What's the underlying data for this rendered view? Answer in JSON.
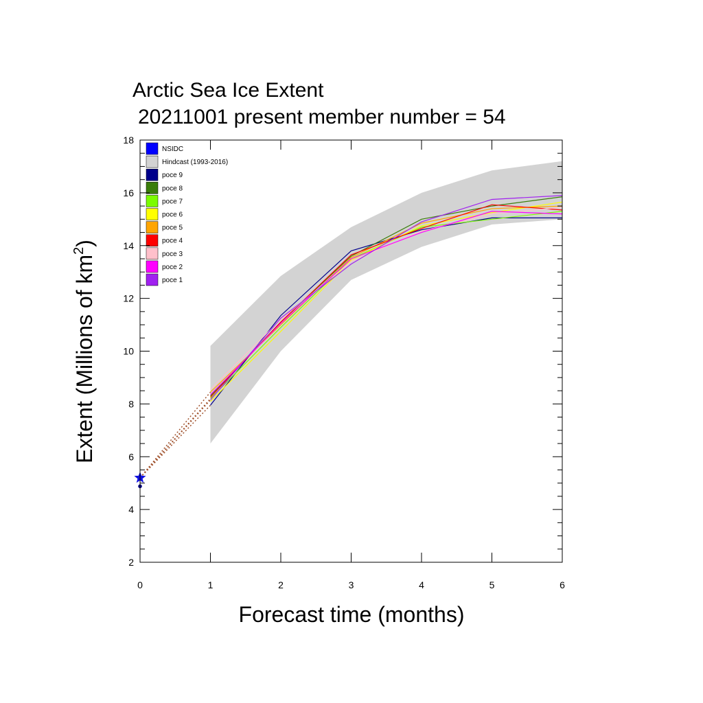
{
  "chart_data": {
    "type": "line",
    "title_line1": "Arctic Sea Ice Extent",
    "title_line2": "20211001 present member number = 54",
    "xlabel": "Forecast time (months)",
    "ylabel_main": "Extent (Millions of km",
    "ylabel_sup": "2",
    "ylabel_close": ")",
    "xlim": [
      0,
      6
    ],
    "ylim": [
      2,
      18
    ],
    "xticks": [
      "0",
      "1",
      "2",
      "3",
      "4",
      "5",
      "6"
    ],
    "yticks": [
      "2",
      "4",
      "6",
      "8",
      "10",
      "12",
      "14",
      "16",
      "18"
    ],
    "x": [
      1,
      2,
      3,
      4,
      5,
      6
    ],
    "observed": {
      "name": "NSIDC",
      "x": 0,
      "y": 5.2,
      "color": "#1010e0"
    },
    "initial_dot": {
      "x": 0,
      "y": 4.88
    },
    "hindcast": {
      "name": "Hindcast (1993-2016)",
      "upper": [
        10.2,
        12.85,
        14.7,
        16.0,
        16.85,
        17.2
      ],
      "lower": [
        6.5,
        10.0,
        12.7,
        13.95,
        14.8,
        15.0
      ],
      "color": "#d3d3d3"
    },
    "series": [
      {
        "name": "poce 9",
        "color": "#00008b",
        "values": [
          7.95,
          11.35,
          13.8,
          14.6,
          15.05,
          15.05
        ]
      },
      {
        "name": "poce 8",
        "color": "#3a7d0a",
        "values": [
          8.3,
          11.1,
          13.6,
          15.0,
          15.5,
          15.85
        ]
      },
      {
        "name": "poce 7",
        "color": "#7cfc00",
        "values": [
          8.2,
          10.9,
          13.5,
          14.7,
          15.0,
          15.3
        ]
      },
      {
        "name": "poce 6",
        "color": "#ffff00",
        "values": [
          8.1,
          10.75,
          13.45,
          14.75,
          15.25,
          15.65
        ]
      },
      {
        "name": "poce 5",
        "color": "#ffa500",
        "values": [
          8.45,
          11.0,
          13.55,
          14.85,
          15.4,
          15.5
        ]
      },
      {
        "name": "poce 4",
        "color": "#ff0000",
        "values": [
          8.25,
          11.1,
          13.65,
          14.65,
          15.55,
          15.35
        ]
      },
      {
        "name": "poce 3",
        "color": "#ffc0cb",
        "values": [
          8.55,
          11.2,
          13.4,
          14.55,
          15.2,
          15.45
        ]
      },
      {
        "name": "poce 2",
        "color": "#ff00ff",
        "values": [
          8.35,
          11.05,
          13.5,
          14.5,
          15.3,
          15.2
        ]
      },
      {
        "name": "poce 1",
        "color": "#a020f0",
        "values": [
          8.15,
          11.25,
          13.3,
          14.9,
          15.75,
          15.9
        ]
      }
    ],
    "legend_position": "top-left",
    "legend": [
      {
        "label": "NSIDC",
        "color": "#0000ff"
      },
      {
        "label": "Hindcast (1993-2016)",
        "color": "#d3d3d3"
      },
      {
        "label": "poce 9",
        "color": "#00008b"
      },
      {
        "label": "poce 8",
        "color": "#3a7d0a"
      },
      {
        "label": "poce 7",
        "color": "#7cfc00"
      },
      {
        "label": "poce 6",
        "color": "#ffff00"
      },
      {
        "label": "poce 5",
        "color": "#ffa500"
      },
      {
        "label": "poce 4",
        "color": "#ff0000"
      },
      {
        "label": "poce 3",
        "color": "#ffc0cb"
      },
      {
        "label": "poce 2",
        "color": "#ff00ff"
      },
      {
        "label": "poce 1",
        "color": "#a020f0"
      }
    ],
    "dotted_link_color": "#a0522d"
  }
}
